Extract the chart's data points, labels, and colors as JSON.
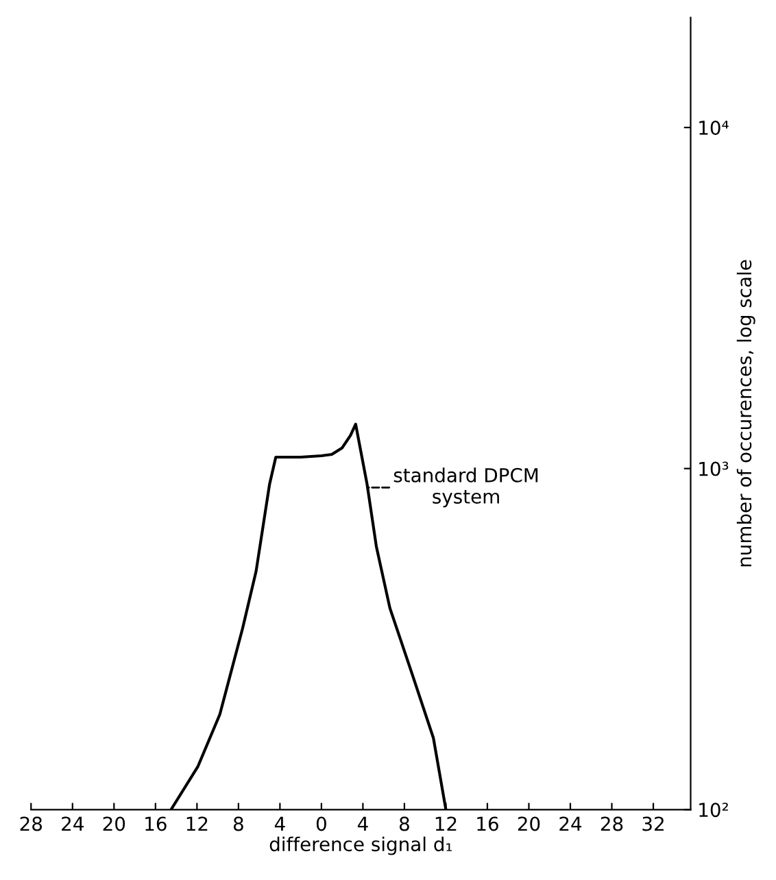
{
  "chart_data": {
    "type": "line",
    "xlabel": "difference signal d₁",
    "ylabel": "number of occurences, log scale",
    "log": true,
    "color": "#000000",
    "marker": "none",
    "line_style": "solid",
    "grid": false,
    "legend": false,
    "x": [
      -14.5,
      -11.9,
      -9.8,
      -7.6,
      -6.3,
      -5.0,
      -4.4,
      -2,
      0,
      1,
      2,
      2.8,
      3.3,
      4.4,
      5.3,
      6.6,
      8.8,
      10.8,
      12.0
    ],
    "values": [
      100,
      134,
      190,
      340,
      500,
      900,
      1080,
      1080,
      1090,
      1100,
      1150,
      1250,
      1350,
      900,
      590,
      390,
      247,
      162,
      100
    ],
    "xlim": [
      -28,
      35.6
    ],
    "ylim": [
      100,
      21000
    ],
    "xticks": [
      {
        "value": -28,
        "label": "28"
      },
      {
        "value": -24,
        "label": "24"
      },
      {
        "value": -20,
        "label": "20"
      },
      {
        "value": -16,
        "label": "16"
      },
      {
        "value": -12,
        "label": "12"
      },
      {
        "value": -8,
        "label": "8"
      },
      {
        "value": -4,
        "label": "4"
      },
      0,
      4,
      8,
      12,
      16,
      20,
      24,
      28,
      32
    ],
    "yticks": [
      {
        "value": 100,
        "label": "10²"
      },
      {
        "value": 1000,
        "label": "10³"
      },
      {
        "value": 10000,
        "label": "10⁴"
      }
    ],
    "annotations": [
      {
        "text": "standard DPCM\nsystem",
        "x": 4.4,
        "y": 880
      }
    ]
  }
}
